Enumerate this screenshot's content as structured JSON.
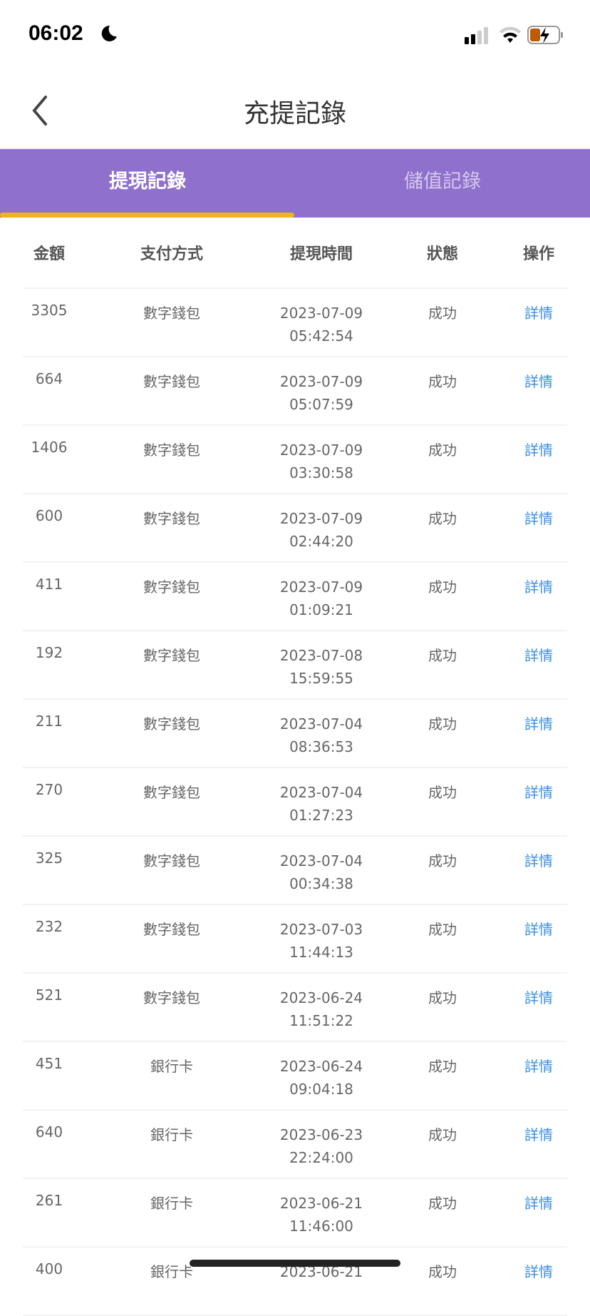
{
  "status_bar": {
    "time": "06:02",
    "icons": [
      "moon-icon",
      "signal-icon",
      "wifi-icon",
      "battery-charging-icon"
    ]
  },
  "header": {
    "title": "充提記錄",
    "back_icon": "chevron-left-icon"
  },
  "tabs": [
    {
      "label": "提現記錄",
      "active": true
    },
    {
      "label": "儲值記錄",
      "active": false
    }
  ],
  "colors": {
    "accent": "#8f70cc",
    "indicator": "#f0b41c",
    "link": "#3a8ee6"
  },
  "table": {
    "columns": [
      "金額",
      "支付方式",
      "提現時間",
      "狀態",
      "操作"
    ],
    "rows": [
      {
        "amount": "3305",
        "method": "數字錢包",
        "date": "2023-07-09",
        "time": "05:42:54",
        "status": "成功",
        "action": "詳情"
      },
      {
        "amount": "664",
        "method": "數字錢包",
        "date": "2023-07-09",
        "time": "05:07:59",
        "status": "成功",
        "action": "詳情"
      },
      {
        "amount": "1406",
        "method": "數字錢包",
        "date": "2023-07-09",
        "time": "03:30:58",
        "status": "成功",
        "action": "詳情"
      },
      {
        "amount": "600",
        "method": "數字錢包",
        "date": "2023-07-09",
        "time": "02:44:20",
        "status": "成功",
        "action": "詳情"
      },
      {
        "amount": "411",
        "method": "數字錢包",
        "date": "2023-07-09",
        "time": "01:09:21",
        "status": "成功",
        "action": "詳情"
      },
      {
        "amount": "192",
        "method": "數字錢包",
        "date": "2023-07-08",
        "time": "15:59:55",
        "status": "成功",
        "action": "詳情"
      },
      {
        "amount": "211",
        "method": "數字錢包",
        "date": "2023-07-04",
        "time": "08:36:53",
        "status": "成功",
        "action": "詳情"
      },
      {
        "amount": "270",
        "method": "數字錢包",
        "date": "2023-07-04",
        "time": "01:27:23",
        "status": "成功",
        "action": "詳情"
      },
      {
        "amount": "325",
        "method": "數字錢包",
        "date": "2023-07-04",
        "time": "00:34:38",
        "status": "成功",
        "action": "詳情"
      },
      {
        "amount": "232",
        "method": "數字錢包",
        "date": "2023-07-03",
        "time": "11:44:13",
        "status": "成功",
        "action": "詳情"
      },
      {
        "amount": "521",
        "method": "數字錢包",
        "date": "2023-06-24",
        "time": "11:51:22",
        "status": "成功",
        "action": "詳情"
      },
      {
        "amount": "451",
        "method": "銀行卡",
        "date": "2023-06-24",
        "time": "09:04:18",
        "status": "成功",
        "action": "詳情"
      },
      {
        "amount": "640",
        "method": "銀行卡",
        "date": "2023-06-23",
        "time": "22:24:00",
        "status": "成功",
        "action": "詳情"
      },
      {
        "amount": "261",
        "method": "銀行卡",
        "date": "2023-06-21",
        "time": "11:46:00",
        "status": "成功",
        "action": "詳情"
      },
      {
        "amount": "400",
        "method": "銀行卡",
        "date": "2023-06-21",
        "time": "",
        "status": "成功",
        "action": "詳情"
      }
    ]
  }
}
